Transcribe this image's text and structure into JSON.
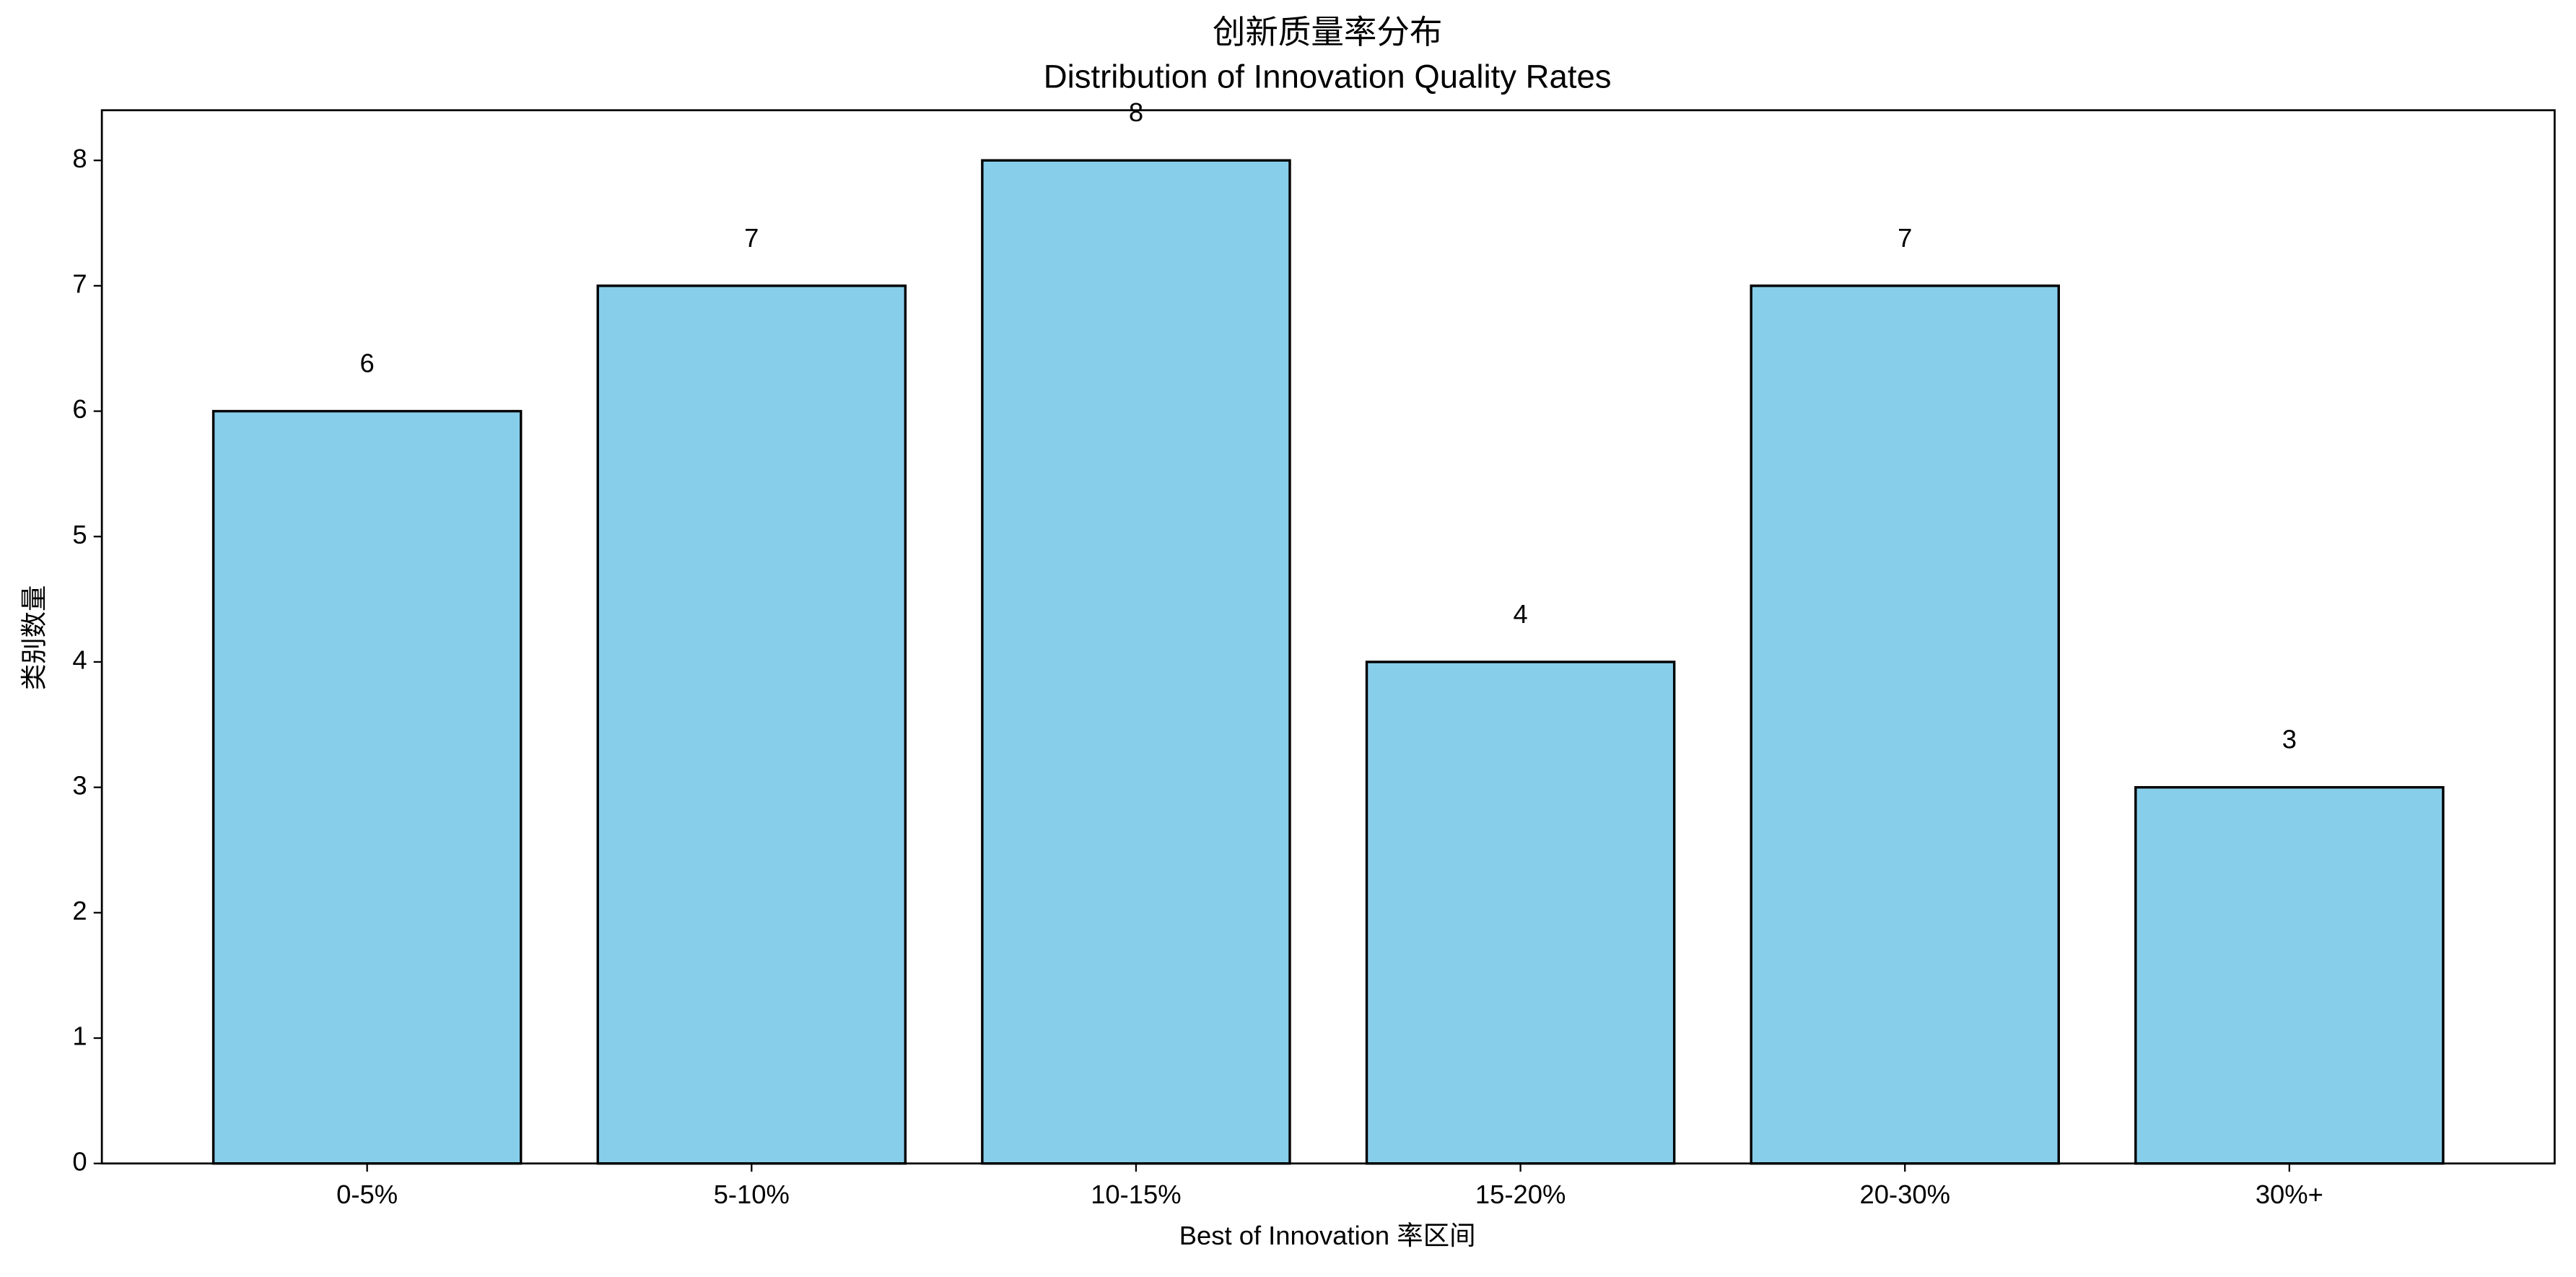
{
  "chart_data": {
    "type": "bar",
    "title": "创新质量率分布",
    "subtitle": "Distribution of Innovation Quality Rates",
    "x_label": "Best of Innovation 率区间",
    "y_label": "类别数量",
    "categories": [
      "0-5%",
      "5-10%",
      "10-15%",
      "15-20%",
      "20-30%",
      "30%+"
    ],
    "values": [
      6,
      7,
      8,
      4,
      7,
      3
    ],
    "color": "#87ceeb",
    "edge_color": "#000000",
    "ylim": [
      0,
      8.4
    ],
    "yticks": [
      0,
      1,
      2,
      3,
      4,
      5,
      6,
      7,
      8
    ],
    "grid": false
  }
}
